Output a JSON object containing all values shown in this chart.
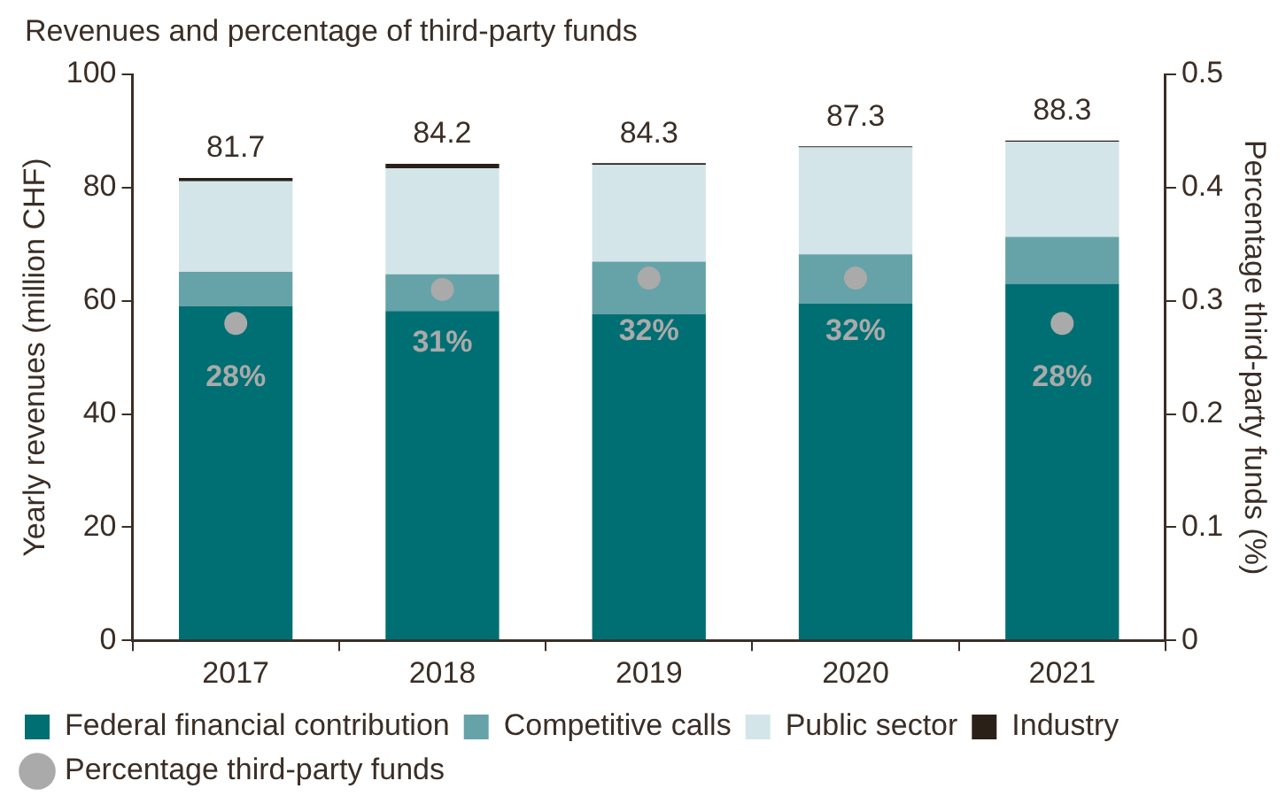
{
  "chart_data": {
    "type": "bar",
    "title": "Revenues and percentage of third-party funds",
    "ylabel": "Yearly revenues (million CHF)",
    "y2label": "Percentage third-party funds (%)",
    "categories": [
      "2017",
      "2018",
      "2019",
      "2020",
      "2021"
    ],
    "stacked": true,
    "series": [
      {
        "name": "Federal financial contribution",
        "color": "#006f73",
        "values": [
          59.0,
          58.2,
          57.6,
          59.5,
          63.0
        ]
      },
      {
        "name": "Competitive calls",
        "color": "#65a3a8",
        "values": [
          6.1,
          6.5,
          9.3,
          8.7,
          8.3
        ]
      },
      {
        "name": "Public sector",
        "color": "#d3e5e9",
        "values": [
          16.0,
          18.7,
          17.1,
          18.9,
          16.8
        ]
      },
      {
        "name": "Industry",
        "color": "#2b2018",
        "values": [
          0.6,
          0.8,
          0.3,
          0.2,
          0.2
        ]
      },
      {
        "name": "Percentage third-party funds",
        "type": "scatter",
        "axis": "y2",
        "color": "#aaaaaa",
        "marker": "circle",
        "values": [
          0.28,
          0.31,
          0.32,
          0.32,
          0.28
        ],
        "value_labels": [
          "28%",
          "31%",
          "32%",
          "32%",
          "28%"
        ]
      }
    ],
    "totals": [
      "81.7",
      "84.2",
      "84.3",
      "87.3",
      "88.3"
    ],
    "ylim": [
      0,
      100
    ],
    "yticks": [
      0,
      20,
      40,
      60,
      80,
      100
    ],
    "y2lim": [
      0,
      0.5
    ],
    "y2ticks": [
      0,
      0.1,
      0.2,
      0.3,
      0.4,
      0.5
    ],
    "grid": false,
    "legend": "bottom"
  }
}
